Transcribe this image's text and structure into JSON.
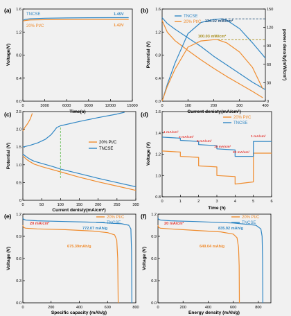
{
  "colors": {
    "orange": "#f08c2e",
    "blue": "#2f86c4",
    "red": "#e53935",
    "olive": "#a58a12",
    "green": "#6ac05a",
    "navy": "#1f4e79",
    "bg": "#f1f1f1"
  },
  "chart_data": [
    {
      "panel": "(a)",
      "type": "line",
      "xlabel": "Time(s)",
      "ylabel": "Voltage(V)",
      "xlim": [
        0,
        15000
      ],
      "ylim": [
        0,
        1.6
      ],
      "xticks": [
        "0",
        "3000",
        "6000",
        "9000",
        "12000",
        "15000"
      ],
      "yticks": [
        "0.0",
        "0.4",
        "0.8",
        "1.2",
        "1.6"
      ],
      "series": [
        {
          "name": "TNCSE",
          "color": "blue",
          "x": [
            0,
            300,
            1000,
            3000,
            6000,
            9000,
            12000,
            14500
          ],
          "y": [
            1.4,
            1.42,
            1.43,
            1.44,
            1.445,
            1.448,
            1.45,
            1.45
          ]
        },
        {
          "name": "20% Pt/C",
          "color": "orange",
          "x": [
            0,
            300,
            1000,
            3000,
            6000,
            9000,
            12000,
            14500
          ],
          "y": [
            1.39,
            1.4,
            1.41,
            1.415,
            1.418,
            1.419,
            1.42,
            1.42
          ]
        }
      ],
      "annotations": [
        {
          "text": "1.45V",
          "color": "blue"
        },
        {
          "text": "1.42V",
          "color": "orange"
        }
      ]
    },
    {
      "panel": "(b)",
      "type": "line",
      "xlabel": "Current denisty(mA/cm²)",
      "ylabel": "Potential (V)",
      "y2label": "power density(mW/cm²)",
      "xlim": [
        0,
        400
      ],
      "ylim": [
        0,
        1.6
      ],
      "y2lim": [
        0,
        150
      ],
      "xticks": [
        "0",
        "100",
        "200",
        "300",
        "400"
      ],
      "yticks": [
        "0.0",
        "0.4",
        "0.8",
        "1.2",
        "1.6"
      ],
      "y2ticks": [
        "0",
        "30",
        "60",
        "90",
        "120",
        "150"
      ],
      "series": [
        {
          "name": "TNCSE",
          "color": "blue",
          "role": "voltage",
          "x": [
            0,
            20,
            50,
            100,
            150,
            200,
            250,
            300,
            350,
            400
          ],
          "y": [
            1.45,
            1.35,
            1.25,
            1.1,
            0.95,
            0.78,
            0.63,
            0.48,
            0.33,
            0.2
          ]
        },
        {
          "name": "20% Pt/C",
          "color": "orange",
          "role": "voltage",
          "x": [
            0,
            20,
            50,
            100,
            150,
            200,
            250,
            300,
            350,
            390
          ],
          "y": [
            1.4,
            1.2,
            1.05,
            0.88,
            0.72,
            0.57,
            0.43,
            0.3,
            0.17,
            0.06
          ]
        },
        {
          "name": "TNCSE power",
          "color": "blue",
          "role": "power",
          "x": [
            0,
            20,
            50,
            100,
            150,
            200,
            230,
            250,
            300,
            350,
            400
          ],
          "y": [
            0,
            27,
            62,
            110,
            128,
            133,
            134,
            132,
            118,
            95,
            70
          ]
        },
        {
          "name": "Pt/C power",
          "color": "orange",
          "role": "power",
          "x": [
            0,
            20,
            50,
            100,
            150,
            200,
            215,
            250,
            300,
            350,
            390
          ],
          "y": [
            0,
            24,
            52,
            88,
            98,
            100,
            100,
            95,
            80,
            55,
            20
          ]
        }
      ],
      "annotations": [
        {
          "text": "134.02 mW/cm²",
          "color": "navy"
        },
        {
          "text": "100.03 mW/cm²",
          "color": "olive"
        }
      ]
    },
    {
      "panel": "(c)",
      "type": "line",
      "xlabel": "Current denisty(mA/cm²)",
      "ylabel": "Potential (V)",
      "xlim": [
        0,
        300
      ],
      "ylim": [
        0,
        2.5
      ],
      "xticks": [
        "0",
        "50",
        "100",
        "150",
        "200",
        "250",
        "300"
      ],
      "yticks": [
        "0",
        "0.5",
        "1.0",
        "1.5",
        "2.0",
        "2.5"
      ],
      "series": [
        {
          "name": "20% Pt/C",
          "color": "orange",
          "x": [
            0,
            10,
            20,
            30,
            50,
            100,
            150,
            200,
            250,
            300
          ],
          "y": [
            1.25,
            1.15,
            1.08,
            1.02,
            0.95,
            0.8,
            0.65,
            0.52,
            0.4,
            0.28
          ]
        },
        {
          "name": "20% Pt/C charge",
          "color": "orange",
          "x": [
            0,
            5,
            10,
            15,
            20,
            25
          ],
          "y": [
            1.95,
            2.05,
            2.12,
            2.2,
            2.3,
            2.45
          ]
        },
        {
          "name": "TNCSE",
          "color": "blue",
          "x": [
            0,
            10,
            20,
            30,
            50,
            80,
            100,
            150,
            200,
            250,
            300
          ],
          "y": [
            1.3,
            1.22,
            1.15,
            1.1,
            1.04,
            0.95,
            0.88,
            0.75,
            0.62,
            0.5,
            0.38
          ]
        },
        {
          "name": "TNCSE charge",
          "color": "blue",
          "x": [
            0,
            20,
            40,
            60,
            75,
            85,
            90,
            100,
            150,
            200,
            250,
            270
          ],
          "y": [
            1.5,
            1.55,
            1.62,
            1.72,
            1.85,
            1.98,
            2.05,
            2.1,
            2.22,
            2.33,
            2.43,
            2.48
          ]
        }
      ],
      "marker_x": 100
    },
    {
      "panel": "(d)",
      "type": "line",
      "xlabel": "Time (h)",
      "ylabel": "Voltage (V)",
      "xlim": [
        0,
        6
      ],
      "ylim": [
        0.8,
        1.6
      ],
      "xticks": [
        "0",
        "1",
        "2",
        "3",
        "4",
        "5",
        "6"
      ],
      "yticks": [
        "0.8",
        "1.0",
        "1.2",
        "1.4",
        "1.6"
      ],
      "series": [
        {
          "name": "20% Pt/C",
          "color": "orange",
          "x": [
            0,
            1,
            1,
            2,
            2,
            3,
            3,
            4,
            4,
            5,
            5,
            6
          ],
          "y": [
            1.23,
            1.22,
            1.18,
            1.17,
            1.09,
            1.08,
            1.0,
            0.99,
            0.92,
            0.94,
            1.21,
            1.21
          ]
        },
        {
          "name": "TNCSE",
          "color": "blue",
          "x": [
            0,
            1,
            1,
            2,
            2,
            3,
            3,
            4,
            4,
            5,
            5,
            6
          ],
          "y": [
            1.36,
            1.35,
            1.33,
            1.32,
            1.29,
            1.28,
            1.25,
            1.24,
            1.18,
            1.18,
            1.32,
            1.32
          ]
        }
      ],
      "step_labels": [
        "1 mA/cm²",
        "2 mA/cm²",
        "5 mA/cm²",
        "10 mA/cm²",
        "20 mA/cm²",
        "1 mA/cm²"
      ]
    },
    {
      "panel": "(e)",
      "type": "line",
      "xlabel": "Specific capacity (mAh/g)",
      "ylabel": "Voltage (V)",
      "xlim": [
        0,
        800
      ],
      "ylim": [
        0,
        1.2
      ],
      "xticks": [
        "0",
        "200",
        "400",
        "600",
        "800"
      ],
      "yticks": [
        "0.0",
        "0.3",
        "0.6",
        "0.9",
        "1.2"
      ],
      "series": [
        {
          "name": "20% Pt/C",
          "color": "orange",
          "x": [
            0,
            5,
            20,
            100,
            300,
            500,
            600,
            650,
            665,
            672,
            675.39
          ],
          "y": [
            1.05,
            1.02,
            1.01,
            1.0,
            0.99,
            0.97,
            0.95,
            0.92,
            0.85,
            0.6,
            0.0
          ]
        },
        {
          "name": "TNCSE",
          "color": "blue",
          "x": [
            0,
            5,
            20,
            100,
            300,
            500,
            700,
            750,
            765,
            770,
            772.07
          ],
          "y": [
            1.15,
            1.13,
            1.12,
            1.11,
            1.1,
            1.09,
            1.07,
            1.05,
            1.0,
            0.7,
            0.0
          ]
        }
      ],
      "annotations": [
        {
          "text": "20 mA/cm²",
          "color": "red"
        },
        {
          "text": "772.07 mAh/g",
          "color": "blue"
        },
        {
          "text": "675.39mAh/g",
          "color": "orange"
        }
      ]
    },
    {
      "panel": "(f)",
      "type": "line",
      "xlabel": "Energy density (mAh/g)",
      "ylabel": "Voltage (V)",
      "xlim": [
        0,
        900
      ],
      "ylim": [
        0,
        1.2
      ],
      "xticks": [
        "0",
        "200",
        "400",
        "600",
        "800"
      ],
      "yticks": [
        "0.0",
        "0.3",
        "0.6",
        "0.9",
        "1.2"
      ],
      "series": [
        {
          "name": "20% Pt/C",
          "color": "orange",
          "x": [
            0,
            5,
            20,
            100,
            300,
            500,
            600,
            630,
            642,
            647,
            649.04
          ],
          "y": [
            1.05,
            1.02,
            1.01,
            1.0,
            0.98,
            0.96,
            0.93,
            0.88,
            0.75,
            0.5,
            0.0
          ]
        },
        {
          "name": "TNCSE",
          "color": "blue",
          "x": [
            0,
            5,
            20,
            100,
            300,
            600,
            780,
            820,
            830,
            834,
            835.92
          ],
          "y": [
            1.15,
            1.13,
            1.12,
            1.11,
            1.1,
            1.08,
            1.05,
            1.0,
            0.9,
            0.6,
            0.0
          ]
        }
      ],
      "annotations": [
        {
          "text": "20 mA/cm²",
          "color": "red"
        },
        {
          "text": "835.92 mAh/g",
          "color": "blue"
        },
        {
          "text": "649.04 mAh/g",
          "color": "orange"
        }
      ]
    }
  ]
}
